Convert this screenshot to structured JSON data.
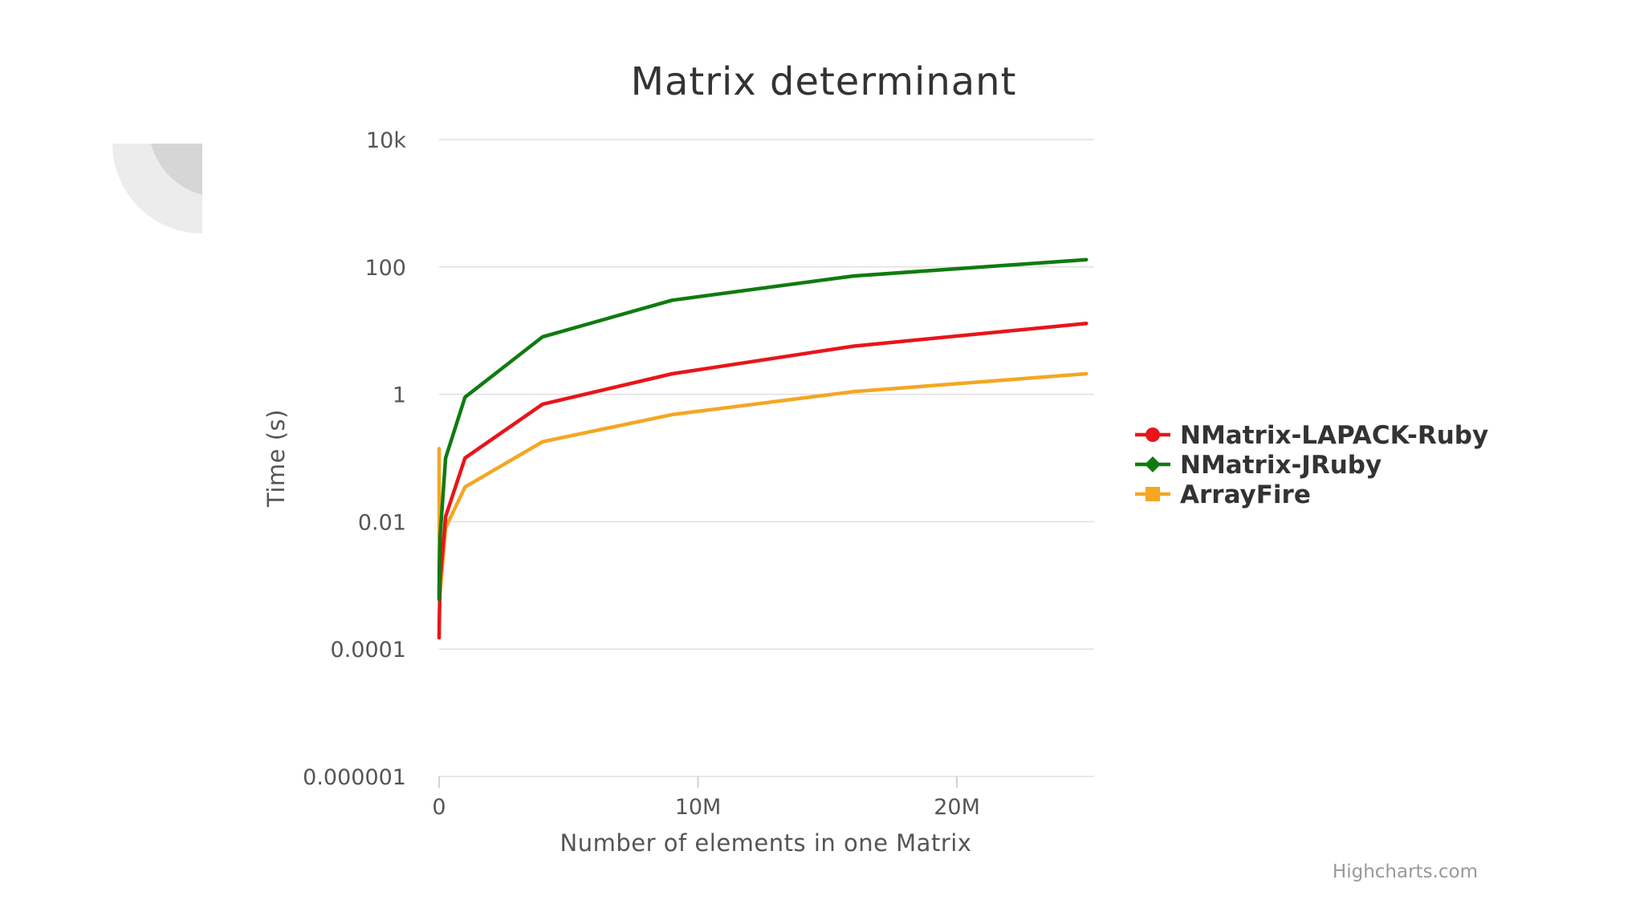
{
  "chart_data": {
    "type": "line",
    "title": "Matrix determinant",
    "xlabel": "Number of elements in one Matrix",
    "ylabel": "Time (s)",
    "x_scale": "linear",
    "y_scale": "log",
    "xlim": [
      0,
      25300000
    ],
    "ylim": [
      1e-06,
      10000
    ],
    "x_ticks": [
      {
        "value": 0,
        "label": "0"
      },
      {
        "value": 10000000,
        "label": "10M"
      },
      {
        "value": 20000000,
        "label": "20M"
      }
    ],
    "y_ticks": [
      {
        "value": 10000,
        "label": "10k"
      },
      {
        "value": 100,
        "label": "100"
      },
      {
        "value": 1,
        "label": "1"
      },
      {
        "value": 0.01,
        "label": "0.01"
      },
      {
        "value": 0.0001,
        "label": "0.0001"
      },
      {
        "value": 1e-06,
        "label": "0.000001"
      }
    ],
    "grid": true,
    "legend_position": "right",
    "series": [
      {
        "name": "NMatrix-LAPACK-Ruby",
        "color": "#e8151b",
        "marker": "circle",
        "x": [
          100,
          10000,
          40000,
          250000,
          1000000,
          4000000,
          9000000,
          16000000,
          25000000
        ],
        "y": [
          0.00015,
          0.0003,
          0.0012,
          0.012,
          0.1,
          0.7,
          2.1,
          5.7,
          13
        ]
      },
      {
        "name": "NMatrix-JRuby",
        "color": "#0f7b0f",
        "marker": "diamond",
        "x": [
          100,
          10000,
          40000,
          250000,
          1000000,
          4000000,
          9000000,
          16000000,
          25000000
        ],
        "y": [
          0.0006,
          0.002,
          0.006,
          0.1,
          0.9,
          8,
          30,
          72,
          130
        ]
      },
      {
        "name": "ArrayFire",
        "color": "#f5a623",
        "marker": "square",
        "x": [
          100,
          10000,
          40000,
          250000,
          1000000,
          4000000,
          9000000,
          16000000,
          25000000
        ],
        "y": [
          0.14,
          0.001,
          0.0008,
          0.008,
          0.035,
          0.18,
          0.48,
          1.1,
          2.1
        ]
      }
    ]
  },
  "credits": "Highcharts.com"
}
